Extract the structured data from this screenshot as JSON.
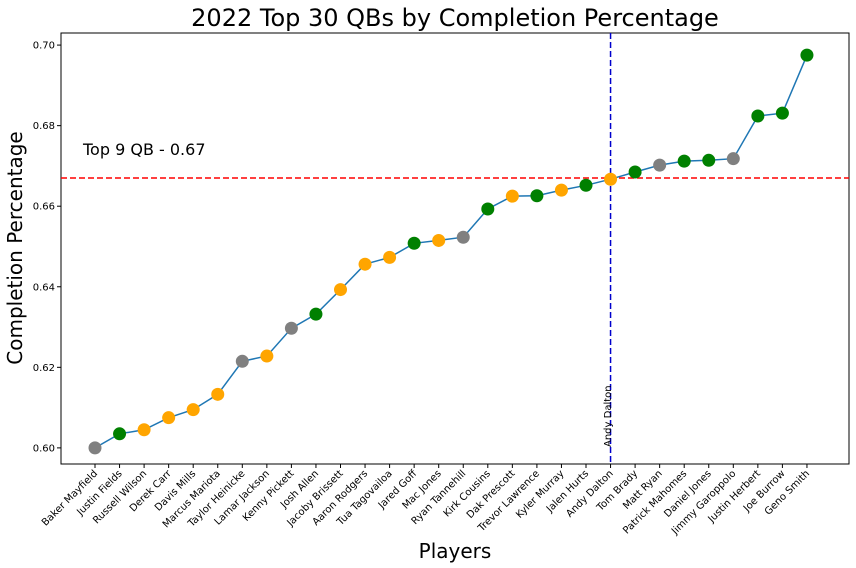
{
  "chart_data": {
    "type": "line",
    "title": "2022 Top 30 QBs by Completion Percentage",
    "xlabel": "Players",
    "ylabel": "Completion Percentage",
    "ylim": [
      0.596,
      0.703
    ],
    "yticks": [
      "0.60",
      "0.62",
      "0.64",
      "0.66",
      "0.68",
      "0.70"
    ],
    "ytick_values": [
      0.6,
      0.62,
      0.64,
      0.66,
      0.68,
      0.7
    ],
    "line_color": "#1f77b4",
    "categories": [
      "Baker Mayfield",
      "Justin Fields",
      "Russell Wilson",
      "Derek Carr",
      "Davis Mills",
      "Marcus Mariota",
      "Taylor Heinicke",
      "Lamar Jackson",
      "Kenny Pickett",
      "Josh Allen",
      "Jacoby Brissett",
      "Aaron Rodgers",
      "Tua Tagovailoa",
      "Jared Goff",
      "Mac Jones",
      "Ryan Tannehill",
      "Kirk Cousins",
      "Dak Prescott",
      "Trevor Lawrence",
      "Kyler Murray",
      "Jalen Hurts",
      "Andy Dalton",
      "Tom Brady",
      "Matt Ryan",
      "Patrick Mahomes",
      "Daniel Jones",
      "Jimmy Garoppolo",
      "Justin Herbert",
      "Joe Burrow",
      "Geno Smith"
    ],
    "values": [
      0.6,
      0.6035,
      0.6045,
      0.6075,
      0.6095,
      0.6133,
      0.6215,
      0.6228,
      0.6297,
      0.6332,
      0.6393,
      0.6456,
      0.6473,
      0.6508,
      0.6515,
      0.6523,
      0.6593,
      0.6625,
      0.6626,
      0.664,
      0.6652,
      0.6667,
      0.6685,
      0.6702,
      0.6712,
      0.6714,
      0.6718,
      0.6824,
      0.6831,
      0.6975
    ],
    "marker_colors": [
      "#808080",
      "#008000",
      "#ffa500",
      "#ffa500",
      "#ffa500",
      "#ffa500",
      "#808080",
      "#ffa500",
      "#808080",
      "#008000",
      "#ffa500",
      "#ffa500",
      "#ffa500",
      "#008000",
      "#ffa500",
      "#808080",
      "#008000",
      "#ffa500",
      "#008000",
      "#ffa500",
      "#008000",
      "#ffa500",
      "#008000",
      "#808080",
      "#008000",
      "#008000",
      "#808080",
      "#008000",
      "#008000",
      "#008000"
    ],
    "reference_lines": {
      "horizontal": {
        "value": 0.667,
        "label": "Top 9 QB - 0.67",
        "color": "#ff0000"
      },
      "vertical": {
        "category": "Andy Dalton",
        "label": "Andy Dalton",
        "color": "#0000cc"
      }
    },
    "grid": false,
    "legend": "none"
  }
}
